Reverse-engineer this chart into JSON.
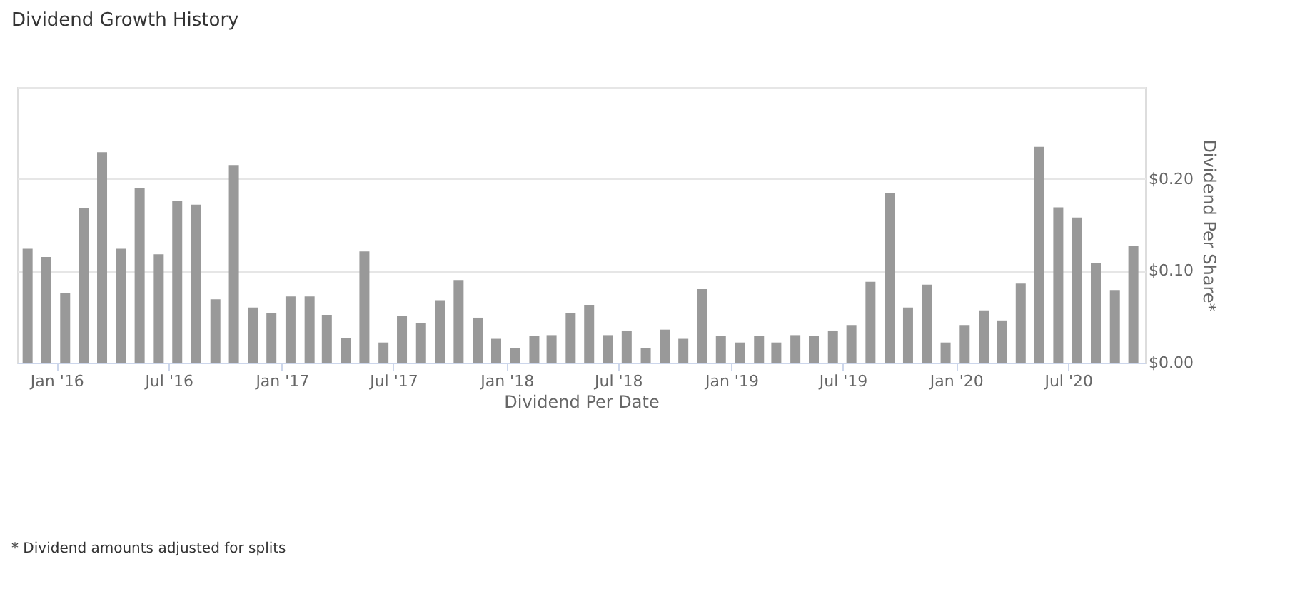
{
  "chart_data": {
    "type": "bar",
    "title": "Dividend Growth History",
    "xlabel": "Dividend Per Date",
    "ylabel": "Dividend Per Share*",
    "x": [
      "2015-11-15",
      "2015-12-15",
      "2016-01-15",
      "2016-02-15",
      "2016-03-15",
      "2016-04-15",
      "2016-05-15",
      "2016-06-15",
      "2016-07-15",
      "2016-08-15",
      "2016-09-15",
      "2016-10-15",
      "2016-11-15",
      "2016-12-15",
      "2017-01-15",
      "2017-02-15",
      "2017-03-15",
      "2017-04-15",
      "2017-05-15",
      "2017-06-15",
      "2017-07-15",
      "2017-08-15",
      "2017-09-15",
      "2017-10-15",
      "2017-11-15",
      "2017-12-15",
      "2018-01-15",
      "2018-02-15",
      "2018-03-15",
      "2018-04-15",
      "2018-05-15",
      "2018-06-15",
      "2018-07-15",
      "2018-08-15",
      "2018-09-15",
      "2018-10-15",
      "2018-11-15",
      "2018-12-15",
      "2019-01-15",
      "2019-02-15",
      "2019-03-15",
      "2019-04-15",
      "2019-05-15",
      "2019-06-15",
      "2019-07-15",
      "2019-08-15",
      "2019-09-15",
      "2019-10-15",
      "2019-11-15",
      "2019-12-15",
      "2020-01-15",
      "2020-02-15",
      "2020-03-15",
      "2020-04-15",
      "2020-05-15",
      "2020-06-15",
      "2020-07-15",
      "2020-08-15",
      "2020-09-15",
      "2020-10-15"
    ],
    "values": [
      0.124,
      0.115,
      0.076,
      0.168,
      0.229,
      0.124,
      0.19,
      0.118,
      0.176,
      0.172,
      0.069,
      0.215,
      0.06,
      0.054,
      0.072,
      0.072,
      0.052,
      0.027,
      0.121,
      0.022,
      0.051,
      0.043,
      0.068,
      0.09,
      0.049,
      0.026,
      0.016,
      0.029,
      0.03,
      0.054,
      0.063,
      0.03,
      0.035,
      0.016,
      0.036,
      0.026,
      0.08,
      0.029,
      0.022,
      0.029,
      0.022,
      0.03,
      0.029,
      0.035,
      0.041,
      0.088,
      0.185,
      0.06,
      0.085,
      0.022,
      0.041,
      0.057,
      0.046,
      0.086,
      0.235,
      0.169,
      0.158,
      0.108,
      0.079,
      0.127
    ],
    "color": "#999999",
    "xlim": [
      "2015-10-29",
      "2020-11-03"
    ],
    "xticks": [
      {
        "value": "2016-01-01",
        "label": "Jan '16"
      },
      {
        "value": "2016-07-01",
        "label": "Jul '16"
      },
      {
        "value": "2017-01-01",
        "label": "Jan '17"
      },
      {
        "value": "2017-07-01",
        "label": "Jul '17"
      },
      {
        "value": "2018-01-01",
        "label": "Jan '18"
      },
      {
        "value": "2018-07-01",
        "label": "Jul '18"
      },
      {
        "value": "2019-01-01",
        "label": "Jan '19"
      },
      {
        "value": "2019-07-01",
        "label": "Jul '19"
      },
      {
        "value": "2020-01-01",
        "label": "Jan '20"
      },
      {
        "value": "2020-07-01",
        "label": "Jul '20"
      }
    ],
    "ylim": [
      0,
      0.3
    ],
    "yticks": [
      {
        "value": 0,
        "label": "$0.00"
      },
      {
        "value": 0.1,
        "label": "$0.10"
      },
      {
        "value": 0.2,
        "label": "$0.20"
      },
      {
        "value": 0.3,
        "label": null
      }
    ],
    "grid": "y",
    "annotations": [
      "* Dividend amounts adjusted for splits"
    ]
  }
}
